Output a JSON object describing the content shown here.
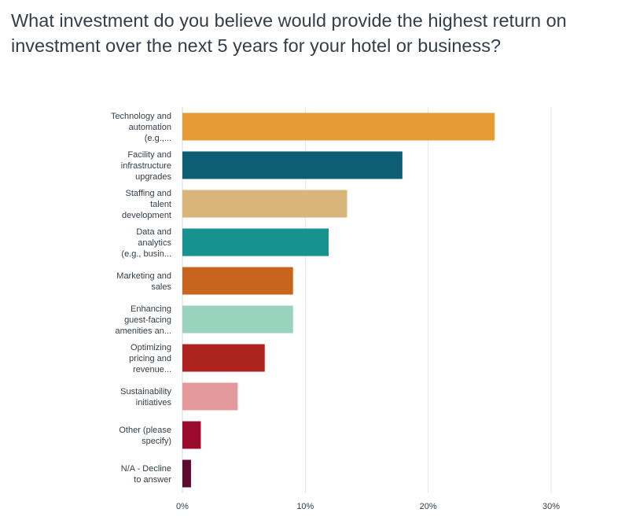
{
  "question": {
    "title": "What investment do you believe would provide the highest return on investment over the next 5 years for your hotel or business?"
  },
  "chart_data": {
    "type": "bar",
    "orientation": "horizontal",
    "title": "What investment do you believe would provide the highest return on investment over the next 5 years for your hotel or business?",
    "xlabel": "",
    "ylabel": "",
    "xlim": [
      0,
      30
    ],
    "x_ticks": [
      "0%",
      "10%",
      "20%",
      "30%"
    ],
    "x_tick_values": [
      0,
      10,
      20,
      30
    ],
    "grid": true,
    "legend": "none",
    "categories": [
      [
        "Technology and",
        "automation",
        "(e.g.,..."
      ],
      [
        "Facility and",
        "infrastructure",
        "upgrades"
      ],
      [
        "Staffing and",
        "talent",
        "development"
      ],
      [
        "Data and",
        "analytics",
        "(e.g., busin..."
      ],
      [
        "Marketing and",
        "sales"
      ],
      [
        "Enhancing",
        "guest-facing",
        "amenities an..."
      ],
      [
        "Optimizing",
        "pricing and",
        "revenue..."
      ],
      [
        "Sustainability",
        "initiatives"
      ],
      [
        "Other (please",
        "specify)"
      ],
      [
        "N/A - Decline",
        "to answer"
      ]
    ],
    "values": [
      25.4,
      17.9,
      13.4,
      11.9,
      9.0,
      9.0,
      6.7,
      4.5,
      1.5,
      0.7
    ],
    "colors": [
      "#e59a33",
      "#0d5e74",
      "#d8b57b",
      "#18928f",
      "#c8641d",
      "#99d3be",
      "#ad241e",
      "#e49a9d",
      "#9b0b2d",
      "#5c0b2f"
    ]
  }
}
